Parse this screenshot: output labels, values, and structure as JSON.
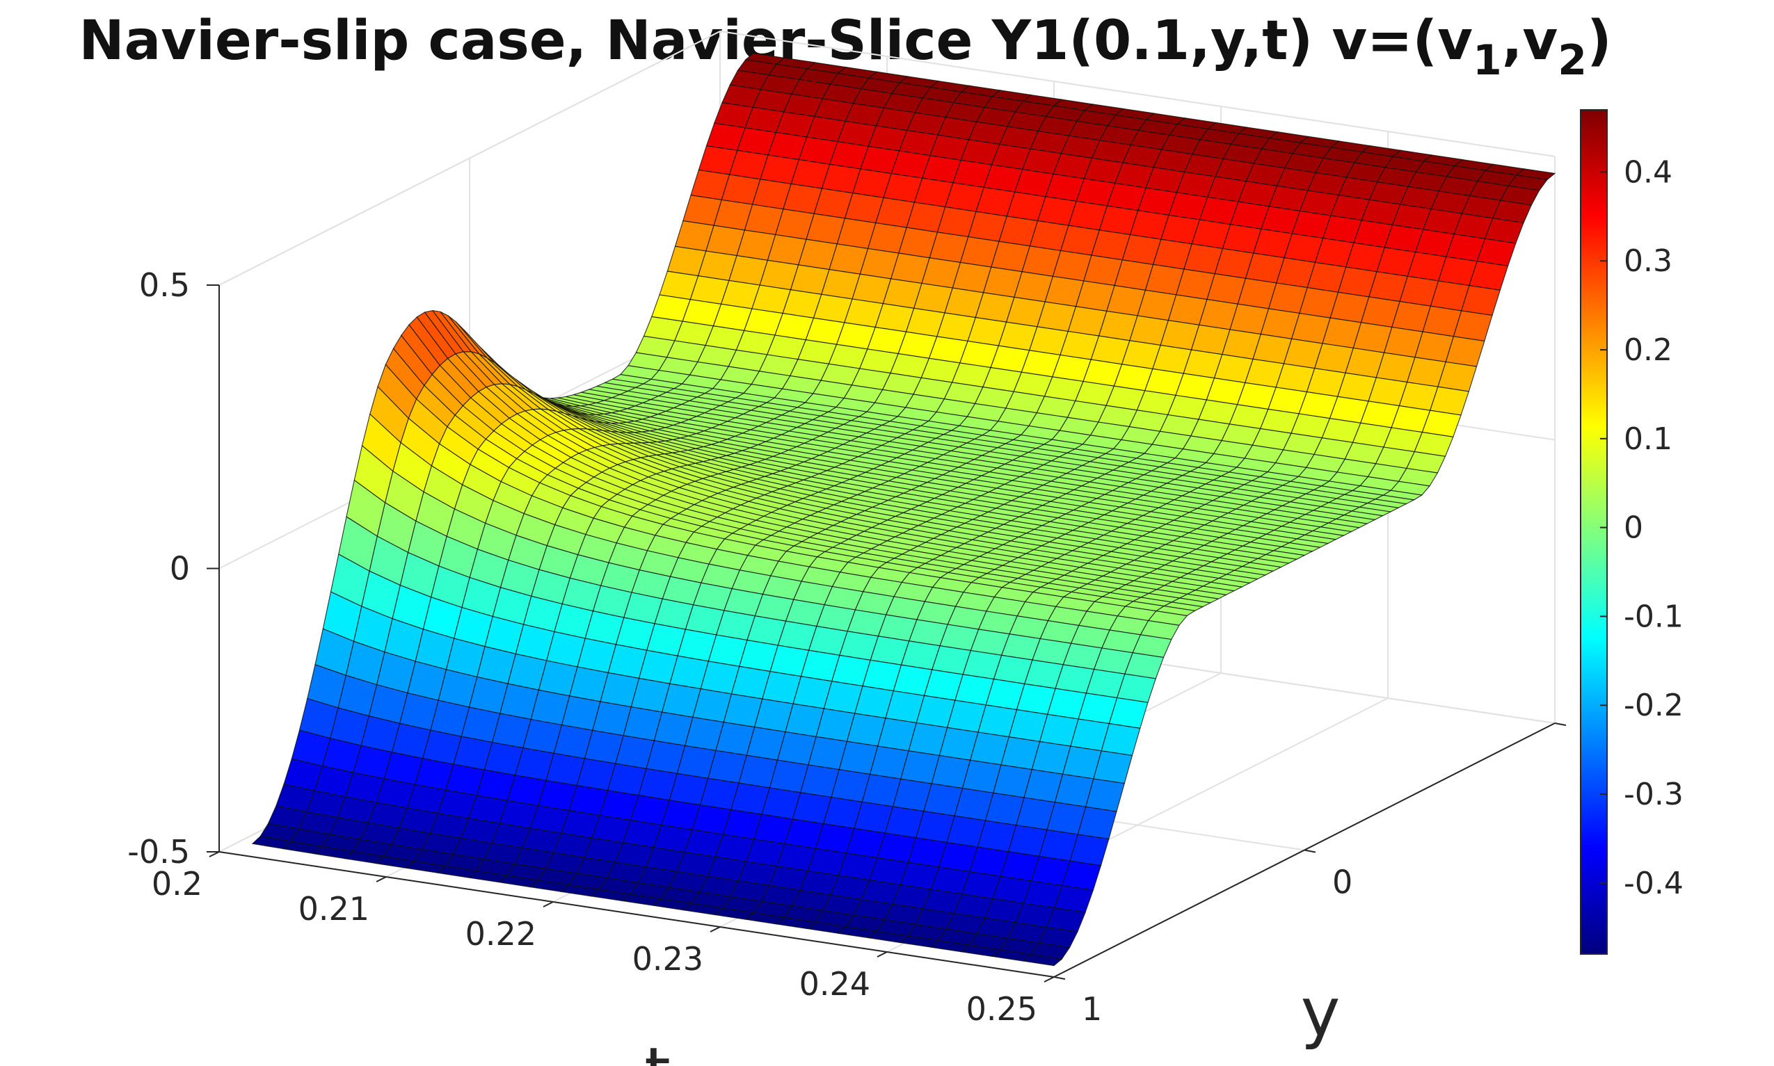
{
  "title": {
    "main": "Navier-slip case, Navier-Slice Y1(0.1,y,t) v=(v",
    "sub1": "1",
    "sep": ",v",
    "sub2": "2",
    "end": ")"
  },
  "chart_data": {
    "type": "surface",
    "title": "Navier-slip case, Navier-Slice Y1(0.1,y,t) v=(v1,v2)",
    "xlabel": "t",
    "ylabel": "y",
    "zlabel": "",
    "x_ticks": [
      "0.2",
      "0.21",
      "0.22",
      "0.23",
      "0.24",
      "0.25"
    ],
    "y_ticks": [
      "1",
      "0",
      "-"
    ],
    "z_ticks": [
      "-0.5",
      "0",
      "0.5"
    ],
    "xlim": [
      0.2,
      0.25
    ],
    "ylim": [
      -1,
      1
    ],
    "zlim": [
      -0.5,
      0.5
    ],
    "colormap": "jet",
    "colorbar": {
      "range": [
        -0.48,
        0.47
      ],
      "ticks": [
        "0.4",
        "0.3",
        "0.2",
        "0.1",
        "0",
        "-0.1",
        "-0.2",
        "-0.3",
        "-0.4"
      ],
      "values": [
        0.4,
        0.3,
        0.2,
        0.1,
        0,
        -0.1,
        -0.2,
        -0.3,
        -0.4
      ]
    },
    "surface_description": {
      "t_range": [
        0.202,
        0.25
      ],
      "y_range": [
        -1,
        1
      ],
      "value_at_y_plus_1": -0.48,
      "value_at_y_minus_1": 0.47,
      "transition": "smooth step from about -0.48 to about 0.47 across y; flat plateau near 0.02 around y = 0; ridge near 0.4 at earliest t",
      "plateau_value": 0.02
    },
    "grid": true
  }
}
